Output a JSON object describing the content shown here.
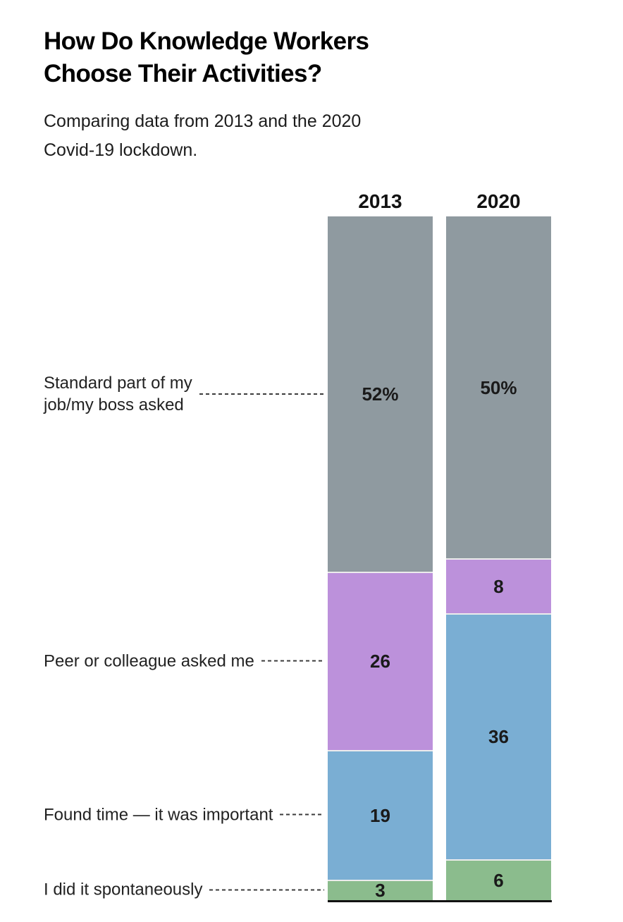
{
  "title": "How Do Knowledge Workers\nChoose Their Activities?",
  "subtitle": "Comparing data from 2013 and the 2020\nCovid-19 lockdown.",
  "chart_data": {
    "type": "bar",
    "stacked": true,
    "orientation": "vertical",
    "unit": "percent",
    "ylim": [
      0,
      100
    ],
    "grid": false,
    "legend_position": "none",
    "title": "How Do Knowledge Workers Choose Their Activities?",
    "subtitle": "Comparing data from 2013 and the 2020 Covid-19 lockdown.",
    "categories": [
      "Standard part of my\njob/my boss asked",
      "Peer or colleague asked me",
      "Found time — it was important",
      "I did it spontaneously"
    ],
    "series": [
      {
        "name": "2013",
        "values": [
          52,
          26,
          19,
          3
        ],
        "value_labels": [
          "52%",
          "26",
          "19",
          "3"
        ]
      },
      {
        "name": "2020",
        "values": [
          50,
          8,
          36,
          6
        ],
        "value_labels": [
          "50%",
          "8",
          "36",
          "6"
        ]
      }
    ],
    "segment_colors": [
      "#8F9AA0",
      "#BC91DB",
      "#7AAED3",
      "#8BBC8D"
    ],
    "colors": {
      "standard_part_gray": "#8F9AA0",
      "peer_purple": "#BC91DB",
      "found_time_blue": "#7AAED3",
      "spontaneous_green": "#8BBC8D",
      "baseline_black": "#121212",
      "segment_separator": "#ECECEC",
      "text_dark": "#1a1a1a"
    }
  }
}
